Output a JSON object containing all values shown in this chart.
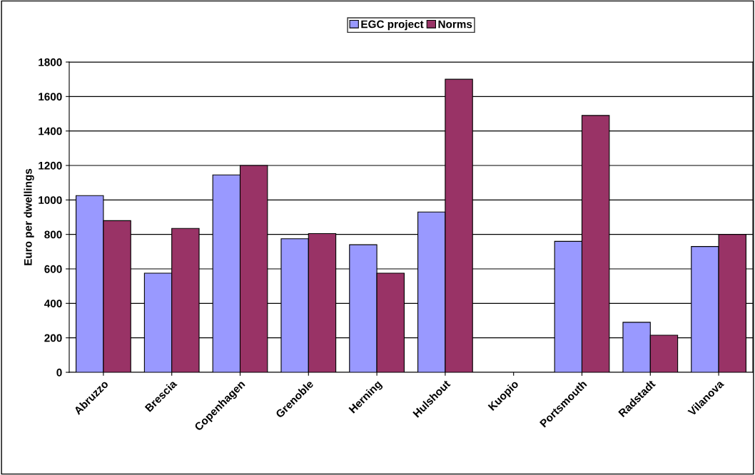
{
  "chart_data": {
    "type": "bar",
    "ylabel": "Euro per dwellings",
    "categories": [
      "Abruzzo",
      "Brescia",
      "Copenhagen",
      "Grenoble",
      "Herning",
      "Hulshout",
      "Kuopio",
      "Portsmouth",
      "Radstadt",
      "Vilanova"
    ],
    "series": [
      {
        "name": "EGC project",
        "color": "#9999ff",
        "values": [
          1025,
          575,
          1145,
          775,
          740,
          930,
          null,
          760,
          290,
          730
        ]
      },
      {
        "name": "Norms",
        "color": "#993366",
        "values": [
          880,
          835,
          1200,
          805,
          575,
          1700,
          null,
          1490,
          215,
          800
        ]
      }
    ],
    "ylim": [
      0,
      1800
    ],
    "yticks": [
      0,
      200,
      400,
      600,
      800,
      1000,
      1200,
      1400,
      1600,
      1800
    ],
    "grid": "y",
    "legend": "top"
  }
}
